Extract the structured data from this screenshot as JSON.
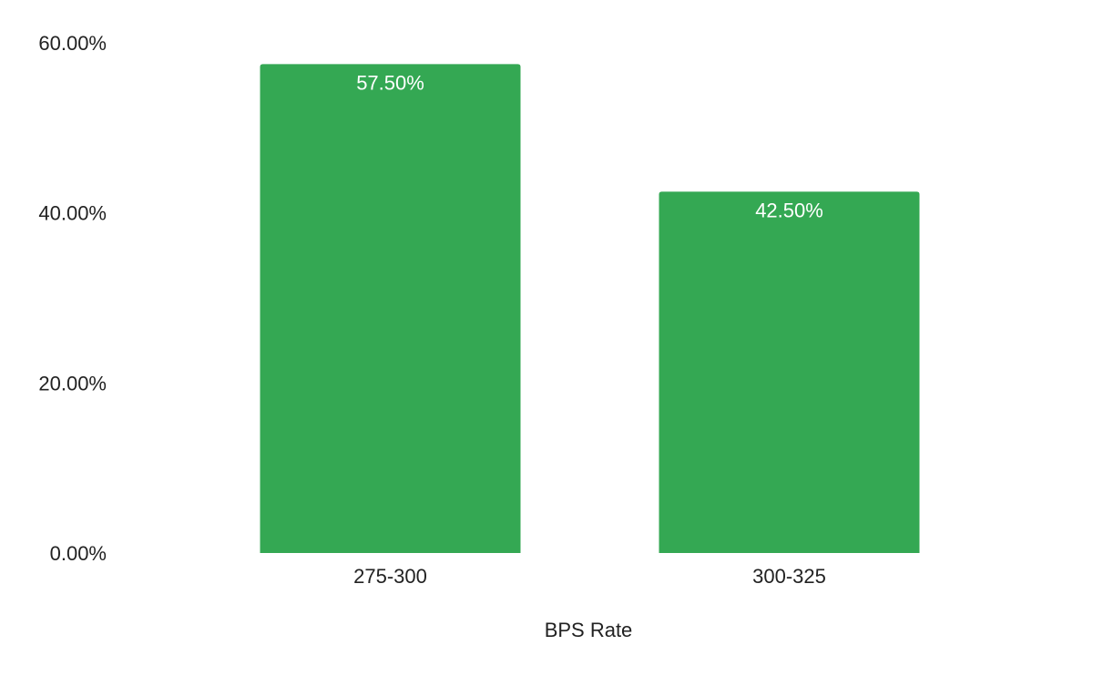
{
  "chart_data": {
    "type": "bar",
    "categories": [
      "275-300",
      "300-325"
    ],
    "values": [
      57.5,
      42.5
    ],
    "data_labels": [
      "57.50%",
      "42.50%"
    ],
    "xlabel": "BPS Rate",
    "ylabel": "",
    "ylim": [
      0,
      60
    ],
    "y_ticks": [
      0,
      20,
      40,
      60
    ],
    "y_tick_labels": [
      "0.00%",
      "20.00%",
      "40.00%",
      "60.00%"
    ],
    "grid": false,
    "bar_color": "#34a853"
  }
}
